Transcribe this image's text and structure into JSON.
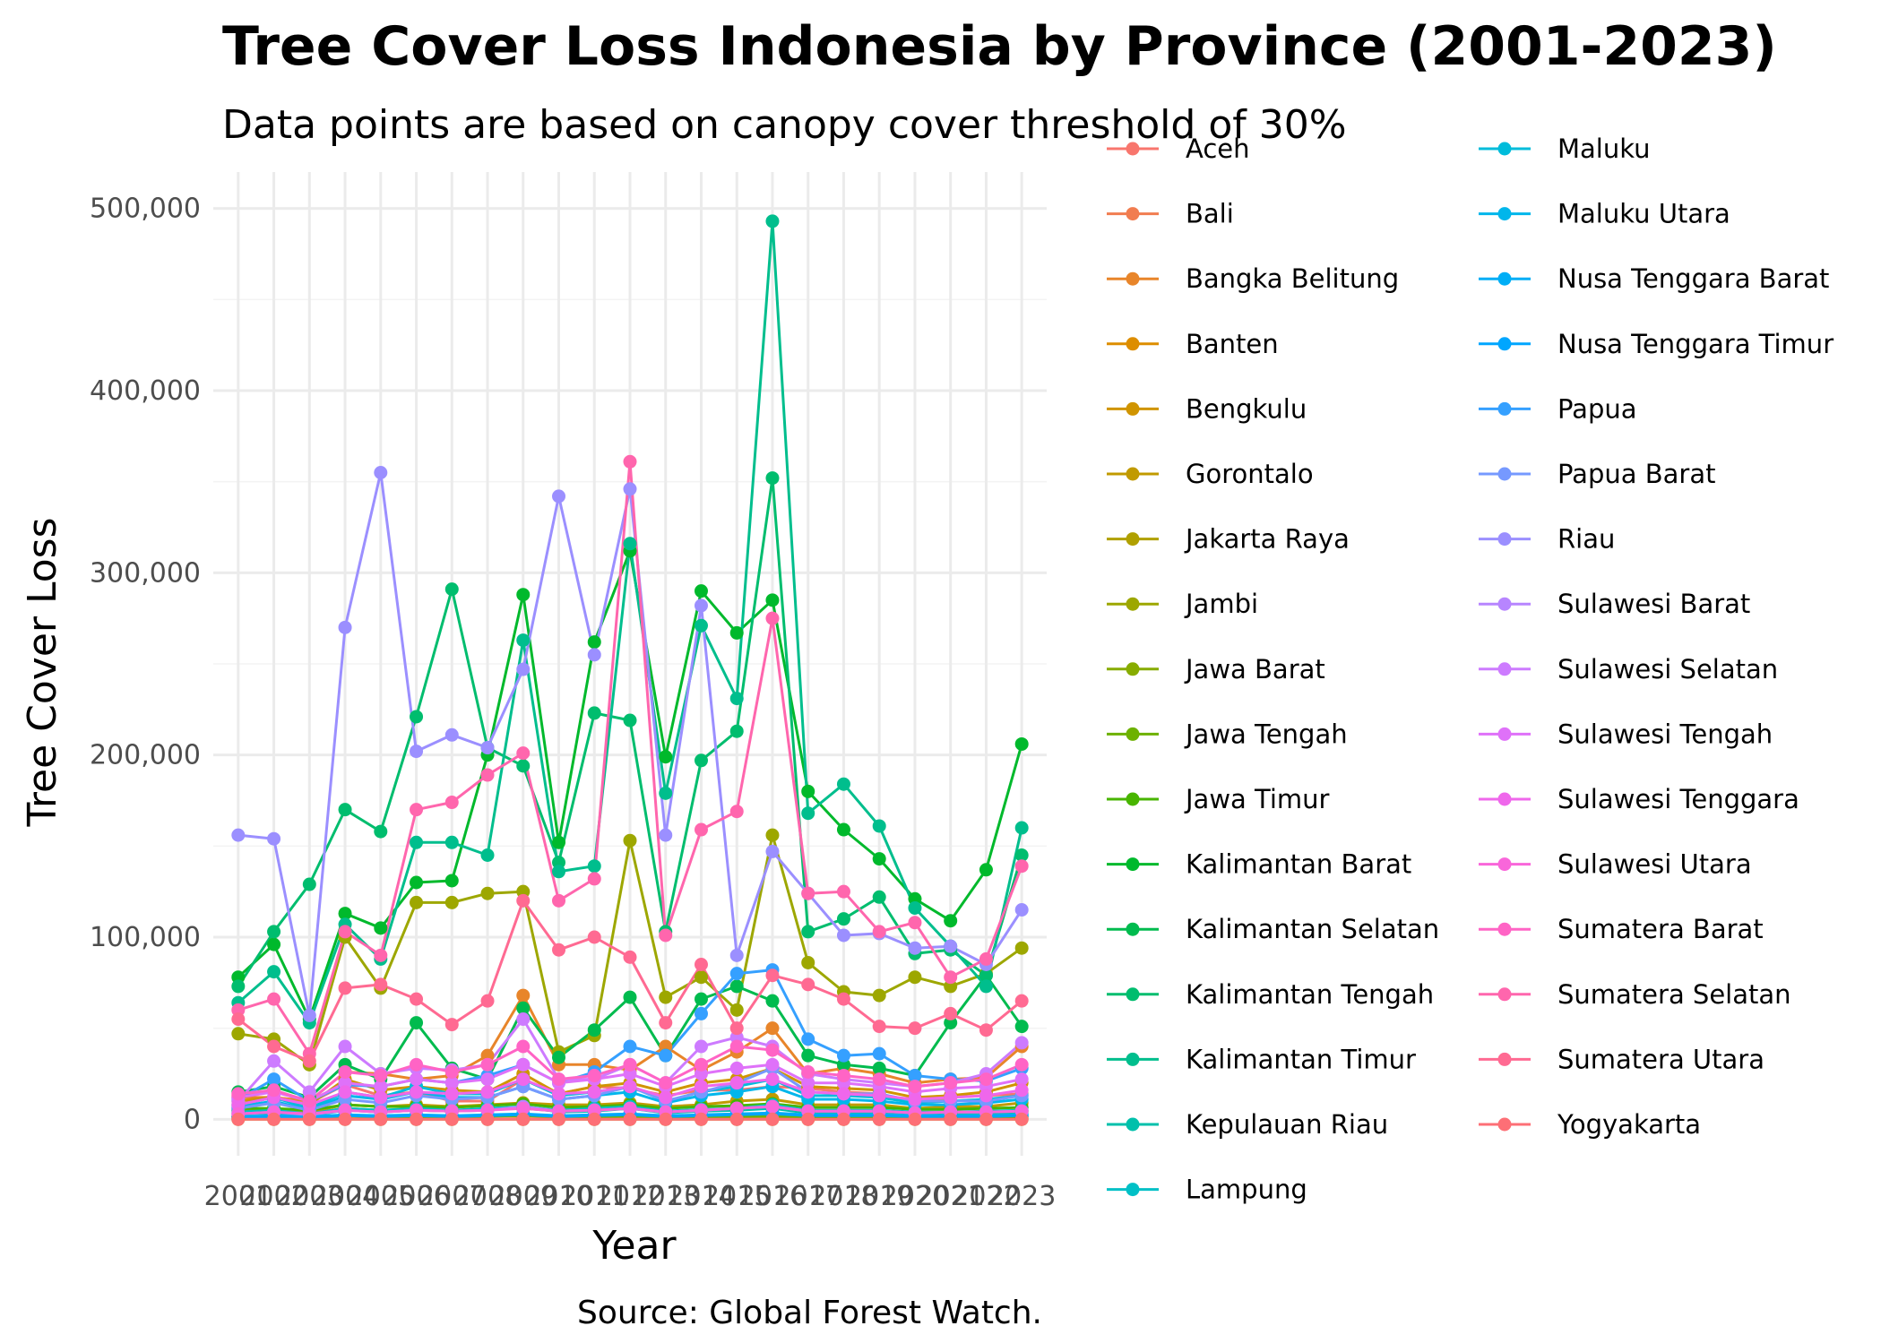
{
  "chart_data": {
    "type": "line",
    "title": "Tree Cover Loss Indonesia by Province (2001-2023)",
    "subtitle": "Data points are based on canopy cover threshold of 30%",
    "xlabel": "Year",
    "ylabel": "Tree Cover Loss",
    "caption": "Source: Global Forest Watch.",
    "ylim": [
      -20000,
      520000
    ],
    "y_ticks": [
      0,
      100000,
      200000,
      300000,
      400000,
      500000
    ],
    "y_tick_labels": [
      "0",
      "100,000",
      "200,000",
      "300,000",
      "400,000",
      "500,000"
    ],
    "grid": true,
    "legend_position": "right",
    "x": [
      2001,
      2002,
      2003,
      2004,
      2005,
      2006,
      2007,
      2008,
      2009,
      2010,
      2011,
      2012,
      2013,
      2014,
      2015,
      2016,
      2017,
      2018,
      2019,
      2020,
      2021,
      2022,
      2023
    ],
    "series": [
      {
        "name": "Aceh",
        "color": "#F8766D",
        "values": [
          13000,
          16000,
          9000,
          19000,
          13000,
          15000,
          10000,
          10000,
          22000,
          14000,
          18000,
          17000,
          13000,
          16000,
          16000,
          18000,
          17000,
          15000,
          14000,
          9000,
          12000,
          13000,
          14000
        ]
      },
      {
        "name": "Bali",
        "color": "#F17D50",
        "values": [
          200,
          300,
          200,
          300,
          200,
          200,
          300,
          300,
          300,
          200,
          200,
          300,
          200,
          200,
          300,
          300,
          200,
          200,
          200,
          200,
          200,
          200,
          200
        ]
      },
      {
        "name": "Bangka Belitung",
        "color": "#E8852A",
        "values": [
          12000,
          12000,
          10000,
          26000,
          25000,
          22000,
          24000,
          35000,
          68000,
          30000,
          30000,
          27000,
          40000,
          27000,
          37000,
          50000,
          25000,
          28000,
          25000,
          20000,
          22000,
          23000,
          40000
        ]
      },
      {
        "name": "Banten",
        "color": "#DD8D00",
        "values": [
          1500,
          1500,
          1200,
          1800,
          1500,
          1500,
          1500,
          1800,
          1900,
          1500,
          1500,
          1800,
          1400,
          1500,
          1600,
          1800,
          1400,
          1400,
          1400,
          1200,
          1200,
          1300,
          1400
        ]
      },
      {
        "name": "Bengkulu",
        "color": "#D09400",
        "values": [
          10000,
          12000,
          8000,
          22000,
          16000,
          18000,
          16000,
          15000,
          25000,
          14000,
          18000,
          20000,
          15000,
          20000,
          22000,
          28000,
          18000,
          17000,
          16000,
          12000,
          13000,
          15000,
          20000
        ]
      },
      {
        "name": "Gorontalo",
        "color": "#C19A00",
        "values": [
          5000,
          6000,
          4000,
          8000,
          7000,
          8000,
          7000,
          8000,
          9000,
          8000,
          8000,
          9000,
          7000,
          8000,
          10000,
          11000,
          8000,
          8000,
          8000,
          6000,
          7000,
          7000,
          9000
        ]
      },
      {
        "name": "Jakarta Raya",
        "color": "#B0A000",
        "values": [
          30,
          30,
          30,
          30,
          30,
          30,
          30,
          30,
          30,
          30,
          30,
          30,
          30,
          30,
          30,
          30,
          30,
          30,
          30,
          30,
          30,
          30,
          30
        ]
      },
      {
        "name": "Jambi",
        "color": "#9DA700",
        "values": [
          47000,
          44000,
          30000,
          100000,
          72000,
          119000,
          119000,
          124000,
          125000,
          37000,
          46000,
          153000,
          67000,
          78000,
          60000,
          156000,
          86000,
          70000,
          68000,
          78000,
          73000,
          80000,
          94000
        ]
      },
      {
        "name": "Jawa Barat",
        "color": "#87AC00",
        "values": [
          5000,
          4500,
          3000,
          6000,
          5000,
          5000,
          4500,
          5500,
          6000,
          4500,
          5000,
          6000,
          4000,
          5000,
          5500,
          6000,
          4500,
          4500,
          4500,
          3500,
          3500,
          4000,
          4500
        ]
      },
      {
        "name": "Jawa Tengah",
        "color": "#6DB100",
        "values": [
          1500,
          1500,
          1000,
          2000,
          1500,
          1500,
          1500,
          1800,
          2000,
          1500,
          1500,
          1800,
          1200,
          1500,
          1600,
          1800,
          1300,
          1300,
          1300,
          1100,
          1100,
          1200,
          1300
        ]
      },
      {
        "name": "Jawa Timur",
        "color": "#48B500",
        "values": [
          6000,
          6000,
          5000,
          8000,
          7000,
          7000,
          6500,
          7500,
          8500,
          6500,
          7000,
          8000,
          6000,
          7000,
          7500,
          8500,
          6500,
          6500,
          6500,
          5500,
          5500,
          6000,
          6500
        ]
      },
      {
        "name": "Kalimantan Barat",
        "color": "#00B92C",
        "values": [
          78000,
          96000,
          55000,
          113000,
          105000,
          130000,
          131000,
          200000,
          288000,
          152000,
          262000,
          312000,
          199000,
          290000,
          267000,
          285000,
          180000,
          159000,
          143000,
          121000,
          109000,
          137000,
          206000
        ]
      },
      {
        "name": "Kalimantan Selatan",
        "color": "#00BB4E",
        "values": [
          15000,
          18000,
          12000,
          30000,
          22000,
          53000,
          28000,
          22000,
          61000,
          34000,
          49000,
          67000,
          35000,
          66000,
          73000,
          65000,
          35000,
          30000,
          28000,
          24000,
          53000,
          79000,
          51000
        ]
      },
      {
        "name": "Kalimantan Tengah",
        "color": "#00BD6E",
        "values": [
          73000,
          103000,
          129000,
          170000,
          158000,
          221000,
          291000,
          204000,
          194000,
          141000,
          223000,
          219000,
          103000,
          197000,
          213000,
          352000,
          103000,
          110000,
          122000,
          91000,
          93000,
          79000,
          145000
        ]
      },
      {
        "name": "Kalimantan Timur",
        "color": "#00BE8D",
        "values": [
          64000,
          81000,
          53000,
          107000,
          88000,
          152000,
          152000,
          145000,
          263000,
          136000,
          139000,
          316000,
          179000,
          271000,
          231000,
          493000,
          168000,
          184000,
          161000,
          116000,
          95000,
          73000,
          160000
        ]
      },
      {
        "name": "Kepulauan Riau",
        "color": "#00C0AB",
        "values": [
          3000,
          3500,
          2000,
          5000,
          4000,
          5000,
          4500,
          5000,
          7000,
          4000,
          4500,
          6000,
          3500,
          4500,
          5000,
          6000,
          3500,
          3500,
          3500,
          2500,
          2500,
          3000,
          3500
        ]
      },
      {
        "name": "Lampung",
        "color": "#00C0C6",
        "values": [
          4000,
          5000,
          3000,
          6000,
          5000,
          6000,
          5000,
          6000,
          7000,
          5000,
          6000,
          7000,
          4500,
          5500,
          6000,
          8000,
          5000,
          5000,
          5000,
          4000,
          4000,
          4500,
          5000
        ]
      },
      {
        "name": "Maluku",
        "color": "#00BCDB",
        "values": [
          8000,
          12000,
          6000,
          15000,
          12000,
          18000,
          14000,
          14000,
          22000,
          13000,
          15000,
          18000,
          10000,
          15000,
          18000,
          22000,
          13000,
          13000,
          12000,
          9000,
          10000,
          11000,
          13000
        ]
      },
      {
        "name": "Maluku Utara",
        "color": "#00B6EB",
        "values": [
          7000,
          10000,
          5000,
          13000,
          11000,
          15000,
          12000,
          12000,
          18000,
          11000,
          13000,
          15000,
          9000,
          13000,
          15000,
          18000,
          11000,
          11000,
          10000,
          8000,
          8000,
          9000,
          11000
        ]
      },
      {
        "name": "Nusa Tenggara Barat",
        "color": "#00AEF6",
        "values": [
          1500,
          2000,
          1500,
          2500,
          2000,
          2500,
          2000,
          2500,
          3000,
          2000,
          2500,
          3000,
          2000,
          2500,
          3000,
          3500,
          2500,
          2500,
          2500,
          2000,
          2000,
          2000,
          2500
        ]
      },
      {
        "name": "Nusa Tenggara Timur",
        "color": "#00A6FF",
        "values": [
          1000,
          1500,
          1000,
          2000,
          1500,
          2000,
          1500,
          2000,
          2500,
          1500,
          2000,
          2500,
          1500,
          2000,
          2500,
          3000,
          2000,
          2000,
          2000,
          1500,
          1500,
          1500,
          2000
        ]
      },
      {
        "name": "Papua",
        "color": "#35A0FF",
        "values": [
          11000,
          22000,
          10000,
          19000,
          18000,
          22000,
          20000,
          24000,
          30000,
          20000,
          26000,
          40000,
          35000,
          58000,
          80000,
          82000,
          44000,
          35000,
          36000,
          24000,
          22000,
          21000,
          28000
        ]
      },
      {
        "name": "Papua Barat",
        "color": "#7699FF",
        "values": [
          6000,
          9000,
          5000,
          11000,
          9000,
          13000,
          11000,
          12000,
          18000,
          11000,
          13000,
          18000,
          10000,
          15000,
          20000,
          28000,
          15000,
          14000,
          14000,
          10000,
          10000,
          10000,
          13000
        ]
      },
      {
        "name": "Riau",
        "color": "#9B8FFF",
        "values": [
          156000,
          154000,
          57000,
          270000,
          355000,
          202000,
          211000,
          204000,
          247000,
          342000,
          255000,
          346000,
          156000,
          282000,
          90000,
          147000,
          124000,
          101000,
          102000,
          94000,
          95000,
          85000,
          115000
        ]
      },
      {
        "name": "Sulawesi Barat",
        "color": "#B785FF",
        "values": [
          3000,
          4000,
          2500,
          5000,
          4000,
          5000,
          4500,
          5000,
          7000,
          4500,
          5000,
          6000,
          4000,
          5000,
          6000,
          7000,
          4500,
          4500,
          4500,
          3500,
          4000,
          4000,
          4500
        ]
      },
      {
        "name": "Sulawesi Selatan",
        "color": "#CD7BFF",
        "values": [
          10000,
          32000,
          15000,
          40000,
          25000,
          28000,
          27000,
          30000,
          55000,
          22000,
          22000,
          30000,
          20000,
          40000,
          45000,
          40000,
          25000,
          22000,
          20000,
          18000,
          20000,
          25000,
          42000
        ]
      },
      {
        "name": "Sulawesi Tengah",
        "color": "#DF71F9",
        "values": [
          12000,
          15000,
          10000,
          20000,
          18000,
          22000,
          20000,
          22000,
          30000,
          20000,
          22000,
          25000,
          18000,
          25000,
          28000,
          30000,
          20000,
          20000,
          18000,
          15000,
          17000,
          18000,
          22000
        ]
      },
      {
        "name": "Sulawesi Tenggara",
        "color": "#EF67EB",
        "values": [
          8000,
          12000,
          8000,
          15000,
          12000,
          15000,
          14000,
          15000,
          22000,
          14000,
          15000,
          18000,
          12000,
          18000,
          20000,
          22000,
          15000,
          14000,
          13000,
          11000,
          12000,
          13000,
          16000
        ]
      },
      {
        "name": "Sulawesi Utara",
        "color": "#F966DA",
        "values": [
          3000,
          4000,
          3000,
          5000,
          4000,
          5000,
          4500,
          5000,
          6000,
          4500,
          5000,
          6000,
          4000,
          5000,
          6000,
          7000,
          4500,
          4500,
          4500,
          3500,
          4000,
          4000,
          4500
        ]
      },
      {
        "name": "Sumatera Barat",
        "color": "#FF64C5",
        "values": [
          14000,
          16000,
          10000,
          26000,
          24000,
          30000,
          26000,
          30000,
          40000,
          22000,
          24000,
          30000,
          20000,
          30000,
          40000,
          38000,
          26000,
          24000,
          22000,
          18000,
          20000,
          22000,
          30000
        ]
      },
      {
        "name": "Sumatera Selatan",
        "color": "#FF66AD",
        "values": [
          60000,
          66000,
          36000,
          103000,
          90000,
          170000,
          174000,
          189000,
          201000,
          120000,
          132000,
          361000,
          101000,
          159000,
          169000,
          275000,
          124000,
          125000,
          103000,
          108000,
          78000,
          88000,
          139000
        ]
      },
      {
        "name": "Sumatera Utara",
        "color": "#FF6A92",
        "values": [
          55000,
          40000,
          32000,
          72000,
          74000,
          66000,
          52000,
          65000,
          120000,
          93000,
          100000,
          89000,
          53000,
          85000,
          50000,
          79000,
          74000,
          66000,
          51000,
          50000,
          58000,
          49000,
          65000
        ]
      },
      {
        "name": "Yogyakarta",
        "color": "#FD6F76",
        "values": [
          20,
          20,
          20,
          20,
          20,
          20,
          20,
          20,
          20,
          20,
          20,
          20,
          20,
          20,
          20,
          20,
          20,
          20,
          20,
          20,
          20,
          20,
          20
        ]
      }
    ]
  }
}
